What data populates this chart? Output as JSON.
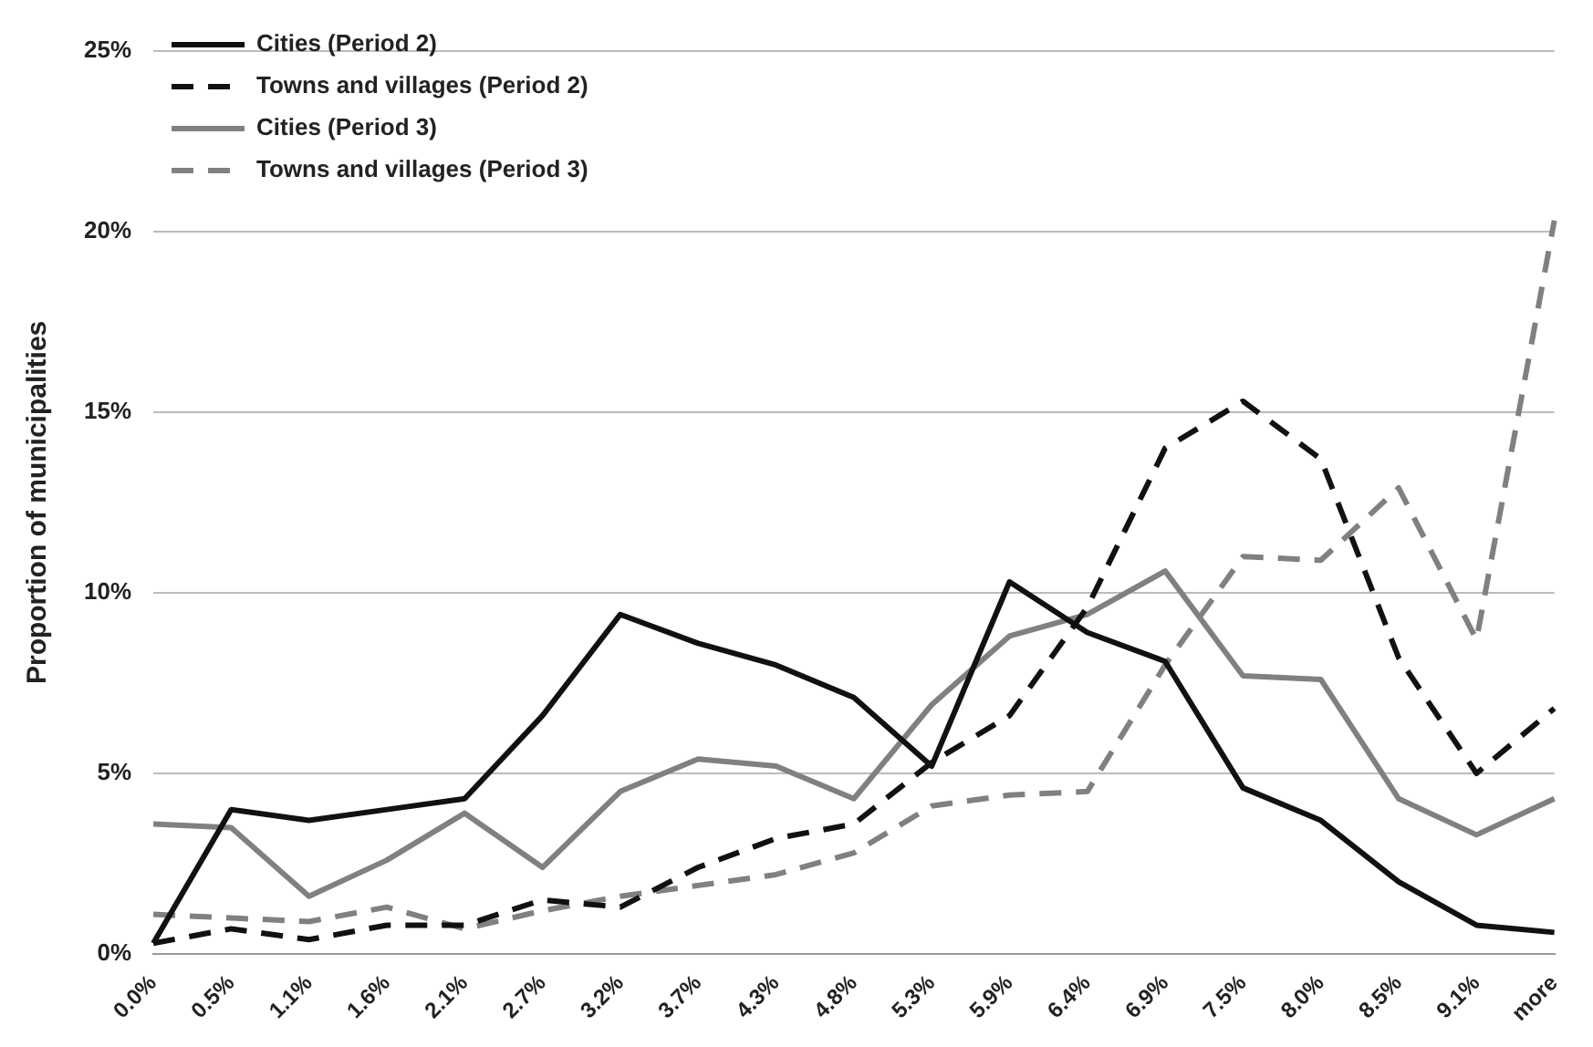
{
  "chart_data": {
    "type": "line",
    "ylabel": "Proportion of municipalities",
    "categories": [
      "0.0%",
      "0.5%",
      "1.1%",
      "1.6%",
      "2.1%",
      "2.7%",
      "3.2%",
      "3.7%",
      "4.3%",
      "4.8%",
      "5.3%",
      "5.9%",
      "6.4%",
      "6.9%",
      "7.5%",
      "8.0%",
      "8.5%",
      "9.1%",
      "more"
    ],
    "series": [
      {
        "name": "Cities (Period 2)",
        "color": "#111111",
        "line_style": "solid",
        "values": [
          0.3,
          4.0,
          3.7,
          4.0,
          4.3,
          6.6,
          9.4,
          8.6,
          8.0,
          7.1,
          5.2,
          10.3,
          8.9,
          8.1,
          4.6,
          3.7,
          2.0,
          0.8,
          0.6
        ]
      },
      {
        "name": "Towns and villages (Period 2)",
        "color": "#111111",
        "line_style": "dashed",
        "values": [
          0.3,
          0.7,
          0.4,
          0.8,
          0.8,
          1.5,
          1.3,
          2.4,
          3.2,
          3.6,
          5.3,
          6.6,
          9.6,
          14.0,
          15.3,
          13.7,
          8.2,
          5.0,
          6.8
        ]
      },
      {
        "name": "Cities (Period 3)",
        "color": "#808080",
        "line_style": "solid",
        "values": [
          3.6,
          3.5,
          1.6,
          2.6,
          3.9,
          2.4,
          4.5,
          5.4,
          5.2,
          4.3,
          6.9,
          8.8,
          9.4,
          10.6,
          7.7,
          7.6,
          4.3,
          3.3,
          4.3
        ]
      },
      {
        "name": "Towns and villages (Period 3)",
        "color": "#808080",
        "line_style": "dashed",
        "values": [
          1.1,
          1.0,
          0.9,
          1.3,
          0.7,
          1.2,
          1.6,
          1.9,
          2.2,
          2.8,
          4.1,
          4.4,
          4.5,
          8.0,
          11.0,
          10.9,
          12.9,
          8.7,
          20.3
        ]
      }
    ],
    "ylim": [
      0,
      25
    ],
    "yticks": [
      {
        "value": 0,
        "label": "0%"
      },
      {
        "value": 5,
        "label": "5%"
      },
      {
        "value": 10,
        "label": "10%"
      },
      {
        "value": 15,
        "label": "15%"
      },
      {
        "value": 20,
        "label": "20%"
      },
      {
        "value": 25,
        "label": "25%"
      }
    ],
    "grid": "y",
    "legend": "top left",
    "marker": "none"
  }
}
